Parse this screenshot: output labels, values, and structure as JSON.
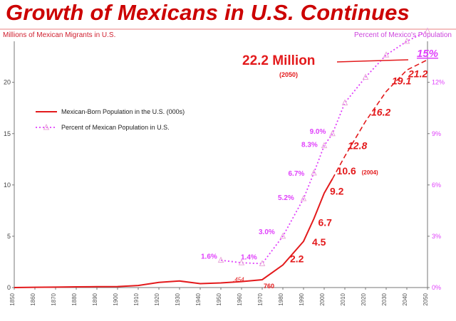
{
  "title": "Growth of Mexicans in U.S. Continues",
  "colors": {
    "title": "#cc0000",
    "population": "#e31a1c",
    "percent": "#e040fb",
    "axis": "#777777"
  },
  "chart_data": {
    "type": "line",
    "y_left_label": "Millions of Mexican Migrants in U.S.",
    "y_right_label": "Percent of Mexico's Population",
    "y_left_ticks": [
      "0",
      "5",
      "10",
      "15",
      "20"
    ],
    "y_left_range": [
      0,
      24
    ],
    "y_right_ticks": [
      "0%",
      "3%",
      "6%",
      "9%",
      "12%"
    ],
    "y_right_range": [
      0,
      14.4
    ],
    "x_range": [
      1850,
      2050
    ],
    "x_ticks": [
      1850,
      1860,
      1870,
      1880,
      1890,
      1900,
      1910,
      1920,
      1930,
      1940,
      1950,
      1960,
      1970,
      1980,
      1990,
      2000,
      2010,
      2020,
      2030,
      2040,
      2050
    ],
    "legend": [
      "Mexican-Born Population in the U.S. (000s)",
      "Percent of Mexican Population in U.S."
    ],
    "series": [
      {
        "name": "Mexican-Born Population in the U.S. (000s)",
        "axis": "left",
        "values": [
          {
            "x": 1850,
            "y": 0.0
          },
          {
            "x": 1860,
            "y": 0.03
          },
          {
            "x": 1870,
            "y": 0.04
          },
          {
            "x": 1880,
            "y": 0.07
          },
          {
            "x": 1890,
            "y": 0.08
          },
          {
            "x": 1900,
            "y": 0.1
          },
          {
            "x": 1910,
            "y": 0.2
          },
          {
            "x": 1920,
            "y": 0.5
          },
          {
            "x": 1930,
            "y": 0.64
          },
          {
            "x": 1940,
            "y": 0.38
          },
          {
            "x": 1950,
            "y": 0.45
          },
          {
            "x": 1960,
            "y": 0.58
          },
          {
            "x": 1970,
            "y": 0.76
          },
          {
            "x": 1980,
            "y": 2.2
          },
          {
            "x": 1990,
            "y": 4.5
          },
          {
            "x": 1995,
            "y": 6.7
          },
          {
            "x": 2000,
            "y": 9.2
          },
          {
            "x": 2004,
            "y": 10.6
          }
        ],
        "projected": [
          {
            "x": 2004,
            "y": 10.6
          },
          {
            "x": 2010,
            "y": 12.8
          },
          {
            "x": 2020,
            "y": 16.2
          },
          {
            "x": 2030,
            "y": 19.1
          },
          {
            "x": 2040,
            "y": 21.2
          },
          {
            "x": 2050,
            "y": 22.2
          }
        ]
      },
      {
        "name": "Percent of Mexican Population in U.S.",
        "axis": "right",
        "values": [
          {
            "x": 1950,
            "y": 1.6
          },
          {
            "x": 1960,
            "y": 1.45
          },
          {
            "x": 1970,
            "y": 1.4
          },
          {
            "x": 1980,
            "y": 3.0
          },
          {
            "x": 1990,
            "y": 5.2
          },
          {
            "x": 1995,
            "y": 6.7
          },
          {
            "x": 2000,
            "y": 8.3
          },
          {
            "x": 2004,
            "y": 9.0
          },
          {
            "x": 2010,
            "y": 10.8
          },
          {
            "x": 2020,
            "y": 12.3
          },
          {
            "x": 2030,
            "y": 13.6
          },
          {
            "x": 2040,
            "y": 14.4
          },
          {
            "x": 2050,
            "y": 15.0
          }
        ]
      }
    ],
    "annotations": {
      "population": [
        {
          "x": 1970,
          "y": 0.76,
          "text": "760"
        },
        {
          "x": 1980,
          "y": 2.2,
          "text": "2.2"
        },
        {
          "x": 1990,
          "y": 4.5,
          "text": "4.5"
        },
        {
          "x": 1995,
          "y": 6.7,
          "text": "6.7"
        },
        {
          "x": 2000,
          "y": 9.2,
          "text": "9.2"
        },
        {
          "x": 2004,
          "y": 10.6,
          "text": "10.6",
          "sub": "(2004)"
        },
        {
          "x": 2010,
          "y": 12.8,
          "text": "12.8"
        },
        {
          "x": 2020,
          "y": 16.2,
          "text": "16.2"
        },
        {
          "x": 2030,
          "y": 19.1,
          "text": "19.1"
        },
        {
          "x": 2040,
          "y": 21.2,
          "text": "21.2"
        }
      ],
      "population_small": [
        {
          "x": 1960,
          "y": 0.454,
          "text": ".454"
        }
      ],
      "percent": [
        {
          "x": 1950,
          "y": 1.6,
          "text": "1.6%"
        },
        {
          "x": 1970,
          "y": 1.4,
          "text": "1.4%"
        },
        {
          "x": 1980,
          "y": 3.0,
          "text": "3.0%"
        },
        {
          "x": 1990,
          "y": 5.2,
          "text": "5.2%"
        },
        {
          "x": 1995,
          "y": 6.7,
          "text": "6.7%"
        },
        {
          "x": 2000,
          "y": 8.3,
          "text": "8.3%"
        },
        {
          "x": 2004,
          "y": 9.0,
          "text": "9.0%"
        }
      ],
      "headline": {
        "text": "22.2 Million",
        "sub": "(2050)",
        "x": 2040,
        "y": 22.2
      },
      "headline_pct": {
        "text": "15%",
        "x": 2050,
        "y": 15.0
      }
    }
  }
}
